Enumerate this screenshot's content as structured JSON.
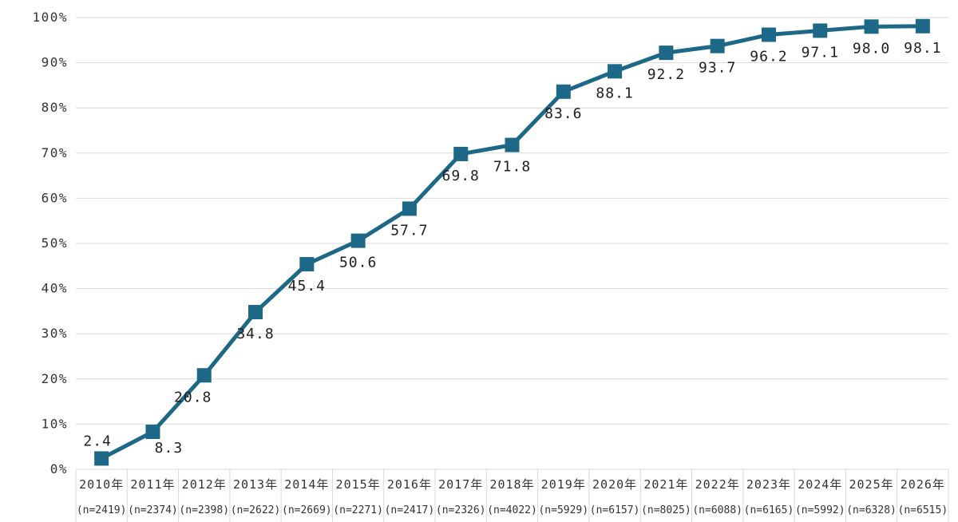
{
  "chart_data": {
    "type": "line",
    "title": "",
    "xlabel": "",
    "ylabel": "",
    "ylim": [
      0,
      100
    ],
    "grid": "horizontal",
    "legend": "none",
    "marker": "square",
    "categories": [
      "2010年",
      "2011年",
      "2012年",
      "2013年",
      "2014年",
      "2015年",
      "2016年",
      "2017年",
      "2018年",
      "2019年",
      "2020年",
      "2021年",
      "2022年",
      "2023年",
      "2024年",
      "2025年",
      "2026年"
    ],
    "sample_sizes": [
      "(n=2419)",
      "(n=2374)",
      "(n=2398)",
      "(n=2622)",
      "(n=2669)",
      "(n=2271)",
      "(n=2417)",
      "(n=2326)",
      "(n=4022)",
      "(n=5929)",
      "(n=6157)",
      "(n=8025)",
      "(n=6088)",
      "(n=6165)",
      "(n=5992)",
      "(n=6328)",
      "(n=6515)"
    ],
    "values": [
      2.4,
      8.3,
      20.8,
      34.8,
      45.4,
      50.6,
      57.7,
      69.8,
      71.8,
      83.6,
      88.1,
      92.2,
      93.7,
      96.2,
      97.1,
      98.0,
      98.1
    ],
    "data_labels": [
      "2.4",
      "8.3",
      "20.8",
      "34.8",
      "45.4",
      "50.6",
      "57.7",
      "69.8",
      "71.8",
      "83.6",
      "88.1",
      "92.2",
      "93.7",
      "96.2",
      "97.1",
      "98.0",
      "98.1"
    ],
    "y_ticks": [
      "0%",
      "10%",
      "20%",
      "30%",
      "40%",
      "50%",
      "60%",
      "70%",
      "80%",
      "90%",
      "100%"
    ],
    "colors": {
      "line": "#1d6787",
      "grid": "#d9d9d9",
      "tick_text": "#333333",
      "data_label_text": "#1f1f1f",
      "background": "#ffffff"
    }
  }
}
